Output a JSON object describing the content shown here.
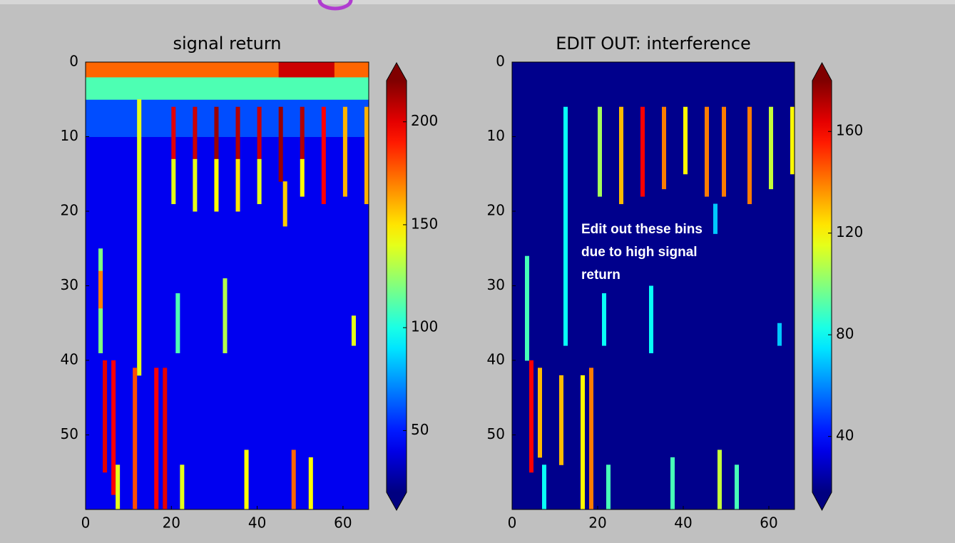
{
  "chart_data": [
    {
      "type": "heatmap",
      "title": "signal return",
      "colormap": "jet",
      "xlim": [
        0,
        66
      ],
      "ylim": [
        60,
        0
      ],
      "xticks": [
        0,
        20,
        40,
        60
      ],
      "yticks": [
        0,
        10,
        20,
        30,
        40,
        50
      ],
      "clim": [
        20,
        220
      ],
      "cticks": [
        50,
        100,
        150,
        200
      ],
      "cells": [
        {
          "x": [
            0,
            66
          ],
          "y": [
            0,
            60
          ],
          "value": 42
        },
        {
          "x": [
            0,
            66
          ],
          "y": [
            5,
            10
          ],
          "value": 60
        },
        {
          "x": [
            0,
            66
          ],
          "y": [
            2,
            5
          ],
          "value": 110
        },
        {
          "x": [
            0,
            66
          ],
          "y": [
            0,
            2
          ],
          "value": 175
        },
        {
          "x": [
            45,
            58
          ],
          "y": [
            0,
            2
          ],
          "value": 205
        },
        {
          "x": [
            12,
            13
          ],
          "y": [
            5,
            42
          ],
          "value": 140
        },
        {
          "x": [
            20,
            21
          ],
          "y": [
            6,
            13
          ],
          "value": 200
        },
        {
          "x": [
            20,
            21
          ],
          "y": [
            13,
            19
          ],
          "value": 140
        },
        {
          "x": [
            25,
            26
          ],
          "y": [
            6,
            13
          ],
          "value": 205
        },
        {
          "x": [
            25,
            26
          ],
          "y": [
            13,
            20
          ],
          "value": 140
        },
        {
          "x": [
            30,
            31
          ],
          "y": [
            6,
            13
          ],
          "value": 215
        },
        {
          "x": [
            30,
            31
          ],
          "y": [
            13,
            20
          ],
          "value": 145
        },
        {
          "x": [
            35,
            36
          ],
          "y": [
            6,
            13
          ],
          "value": 210
        },
        {
          "x": [
            35,
            36
          ],
          "y": [
            13,
            20
          ],
          "value": 150
        },
        {
          "x": [
            40,
            41
          ],
          "y": [
            6,
            13
          ],
          "value": 205
        },
        {
          "x": [
            40,
            41
          ],
          "y": [
            13,
            19
          ],
          "value": 140
        },
        {
          "x": [
            45,
            46
          ],
          "y": [
            6,
            16
          ],
          "value": 215
        },
        {
          "x": [
            46,
            47
          ],
          "y": [
            16,
            22
          ],
          "value": 155
        },
        {
          "x": [
            50,
            51
          ],
          "y": [
            6,
            13
          ],
          "value": 210
        },
        {
          "x": [
            50,
            51
          ],
          "y": [
            13,
            18
          ],
          "value": 145
        },
        {
          "x": [
            55,
            56
          ],
          "y": [
            6,
            19
          ],
          "value": 195
        },
        {
          "x": [
            60,
            61
          ],
          "y": [
            6,
            18
          ],
          "value": 160
        },
        {
          "x": [
            65,
            66
          ],
          "y": [
            6,
            19
          ],
          "value": 160
        },
        {
          "x": [
            3,
            4
          ],
          "y": [
            25,
            39
          ],
          "value": 120
        },
        {
          "x": [
            3,
            4
          ],
          "y": [
            28,
            33
          ],
          "value": 170
        },
        {
          "x": [
            21,
            22
          ],
          "y": [
            31,
            39
          ],
          "value": 110
        },
        {
          "x": [
            32,
            33
          ],
          "y": [
            29,
            39
          ],
          "value": 130
        },
        {
          "x": [
            62,
            63
          ],
          "y": [
            34,
            38
          ],
          "value": 140
        },
        {
          "x": [
            4,
            5
          ],
          "y": [
            40,
            55
          ],
          "value": 200
        },
        {
          "x": [
            6,
            7
          ],
          "y": [
            40,
            58
          ],
          "value": 195
        },
        {
          "x": [
            7,
            8
          ],
          "y": [
            54,
            60
          ],
          "value": 140
        },
        {
          "x": [
            11,
            12
          ],
          "y": [
            41,
            60
          ],
          "value": 180
        },
        {
          "x": [
            16,
            17
          ],
          "y": [
            41,
            60
          ],
          "value": 195
        },
        {
          "x": [
            18,
            19
          ],
          "y": [
            41,
            60
          ],
          "value": 200
        },
        {
          "x": [
            22,
            23
          ],
          "y": [
            54,
            60
          ],
          "value": 140
        },
        {
          "x": [
            37,
            38
          ],
          "y": [
            52,
            60
          ],
          "value": 145
        },
        {
          "x": [
            48,
            49
          ],
          "y": [
            52,
            60
          ],
          "value": 175
        },
        {
          "x": [
            52,
            53
          ],
          "y": [
            53,
            60
          ],
          "value": 145
        }
      ]
    },
    {
      "type": "heatmap",
      "title": "EDIT OUT: interference",
      "colormap": "jet",
      "xlim": [
        0,
        66
      ],
      "ylim": [
        60,
        0
      ],
      "xticks": [
        0,
        20,
        40,
        60
      ],
      "yticks": [
        0,
        10,
        20,
        30,
        40,
        50
      ],
      "clim": [
        18,
        180
      ],
      "cticks": [
        40,
        80,
        120,
        160
      ],
      "annotation": [
        "Edit out these bins",
        "due to high signal",
        "return"
      ],
      "cells": [
        {
          "x": [
            0,
            66
          ],
          "y": [
            0,
            60
          ],
          "value": 20
        },
        {
          "x": [
            20,
            21
          ],
          "y": [
            6,
            18
          ],
          "value": 105
        },
        {
          "x": [
            25,
            26
          ],
          "y": [
            6,
            19
          ],
          "value": 130
        },
        {
          "x": [
            30,
            31
          ],
          "y": [
            6,
            18
          ],
          "value": 160
        },
        {
          "x": [
            35,
            36
          ],
          "y": [
            6,
            17
          ],
          "value": 140
        },
        {
          "x": [
            40,
            41
          ],
          "y": [
            6,
            15
          ],
          "value": 120
        },
        {
          "x": [
            45,
            46
          ],
          "y": [
            6,
            18
          ],
          "value": 140
        },
        {
          "x": [
            49,
            50
          ],
          "y": [
            6,
            18
          ],
          "value": 140
        },
        {
          "x": [
            55,
            56
          ],
          "y": [
            6,
            19
          ],
          "value": 140
        },
        {
          "x": [
            60,
            61
          ],
          "y": [
            6,
            17
          ],
          "value": 110
        },
        {
          "x": [
            65,
            66
          ],
          "y": [
            6,
            15
          ],
          "value": 120
        },
        {
          "x": [
            12,
            13
          ],
          "y": [
            6,
            38
          ],
          "value": 80
        },
        {
          "x": [
            3,
            4
          ],
          "y": [
            26,
            40
          ],
          "value": 90
        },
        {
          "x": [
            21,
            22
          ],
          "y": [
            31,
            38
          ],
          "value": 80
        },
        {
          "x": [
            32,
            33
          ],
          "y": [
            30,
            39
          ],
          "value": 80
        },
        {
          "x": [
            47,
            48
          ],
          "y": [
            19,
            23
          ],
          "value": 70
        },
        {
          "x": [
            62,
            63
          ],
          "y": [
            35,
            38
          ],
          "value": 70
        },
        {
          "x": [
            4,
            5
          ],
          "y": [
            40,
            55
          ],
          "value": 160
        },
        {
          "x": [
            6,
            7
          ],
          "y": [
            41,
            53
          ],
          "value": 130
        },
        {
          "x": [
            7,
            8
          ],
          "y": [
            54,
            60
          ],
          "value": 80
        },
        {
          "x": [
            11,
            12
          ],
          "y": [
            42,
            54
          ],
          "value": 130
        },
        {
          "x": [
            16,
            17
          ],
          "y": [
            42,
            60
          ],
          "value": 120
        },
        {
          "x": [
            18,
            19
          ],
          "y": [
            41,
            60
          ],
          "value": 140
        },
        {
          "x": [
            22,
            23
          ],
          "y": [
            54,
            60
          ],
          "value": 90
        },
        {
          "x": [
            37,
            38
          ],
          "y": [
            53,
            60
          ],
          "value": 90
        },
        {
          "x": [
            48,
            49
          ],
          "y": [
            52,
            60
          ],
          "value": 110
        },
        {
          "x": [
            52,
            53
          ],
          "y": [
            54,
            60
          ],
          "value": 90
        }
      ]
    }
  ]
}
